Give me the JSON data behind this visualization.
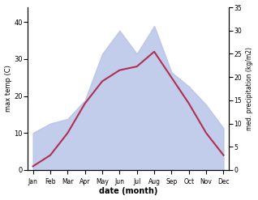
{
  "months": [
    "Jan",
    "Feb",
    "Mar",
    "Apr",
    "May",
    "Jun",
    "Jul",
    "Aug",
    "Sep",
    "Oct",
    "Nov",
    "Dec"
  ],
  "max_temp": [
    1,
    4,
    10,
    18,
    24,
    27,
    28,
    32,
    25,
    18,
    10,
    4
  ],
  "precipitation": [
    8,
    10,
    11,
    15,
    25,
    30,
    25,
    31,
    21,
    18,
    14,
    9
  ],
  "temp_color": "#b03050",
  "precip_fill_color": "#b8c4e8",
  "xlabel": "date (month)",
  "ylabel_left": "max temp (C)",
  "ylabel_right": "med. precipitation (kg/m2)",
  "ylim_left": [
    0,
    44
  ],
  "ylim_right": [
    0,
    35
  ],
  "yticks_left": [
    0,
    10,
    20,
    30,
    40
  ],
  "yticks_right": [
    0,
    5,
    10,
    15,
    20,
    25,
    30,
    35
  ],
  "line_width": 1.5
}
